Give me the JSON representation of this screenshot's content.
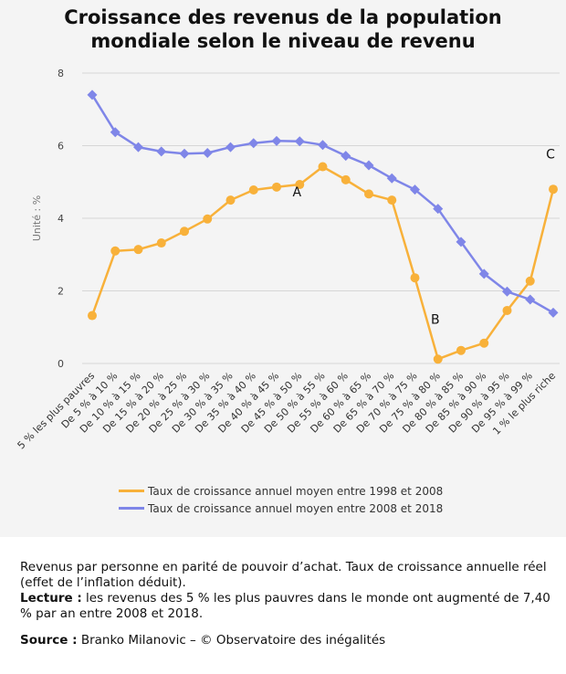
{
  "title_lines": [
    "Croissance des revenus de la population",
    "mondiale selon le niveau de revenu"
  ],
  "notes": {
    "description": "Revenus par personne en parité de pouvoir d’achat. Taux de croissance annuelle réel (effet de l’inflation déduit).",
    "lecture_label": "Lecture :",
    "lecture_text": " les revenus des 5 % les plus pauvres dans le monde ont augmenté de 7,40 % par an entre 2008 et 2018.",
    "source_label": "Source :",
    "source_text": " Branko Milanovic – © Observatoire des inégalités"
  },
  "colors": {
    "series_1998_2008": "#f8b13a",
    "series_2008_2018": "#7f86e8",
    "grid": "#d6d6d6",
    "background": "#f4f4f4"
  },
  "chart_data": {
    "type": "line",
    "title": "Croissance des revenus de la population mondiale selon le niveau de revenu",
    "ylabel": "Unité : %",
    "xlabel": "",
    "ylim": [
      0,
      8
    ],
    "yticks": [
      0,
      2,
      4,
      6,
      8
    ],
    "grid": true,
    "legend_position": "bottom",
    "categories": [
      "5 % les plus pauvres",
      "De 5 % à 10 %",
      "De 10 % à 15 %",
      "De 15 % à 20 %",
      "De 20 % à 25 %",
      "De 25 % à 30 %",
      "De 30 % à 35 %",
      "De 35 % à 40 %",
      "De 40 % à 45 %",
      "De 45 % à 50 %",
      "De 50 % à 55 %",
      "De 55 % à 60 %",
      "De 60 % à 65 %",
      "De 65 % à 70 %",
      "De 70 % à 75 %",
      "De 75 % à 80 %",
      "De 80 % à 85 %",
      "De 85 % à 90 %",
      "De 90 % à 95 %",
      "De 95 % à 99 %",
      "1 % le plus riche"
    ],
    "series": [
      {
        "name": "Taux de croissance annuel moyen entre 1998 et 2008",
        "marker": "circle",
        "color": "#f8b13a",
        "values": [
          1.32,
          3.1,
          3.14,
          3.32,
          3.64,
          3.98,
          4.5,
          4.78,
          4.86,
          4.93,
          5.42,
          5.06,
          4.67,
          4.5,
          2.36,
          0.12,
          0.36,
          0.56,
          1.46,
          2.27,
          4.8
        ]
      },
      {
        "name": "Taux de croissance annuel moyen entre 2008 et 2018",
        "marker": "diamond",
        "color": "#7f86e8",
        "values": [
          7.4,
          6.37,
          5.96,
          5.84,
          5.78,
          5.8,
          5.96,
          6.07,
          6.13,
          6.12,
          6.02,
          5.72,
          5.46,
          5.1,
          4.79,
          4.26,
          3.35,
          2.47,
          1.98,
          1.76,
          1.4
        ]
      }
    ],
    "annotations": [
      {
        "text": "A",
        "x": "De 45 % à 50 %",
        "y": 4.6
      },
      {
        "text": "B",
        "x": "De 75 % à 80 %",
        "y": 1.1
      },
      {
        "text": "C",
        "x": "1 % le plus riche",
        "y": 5.65
      }
    ]
  }
}
